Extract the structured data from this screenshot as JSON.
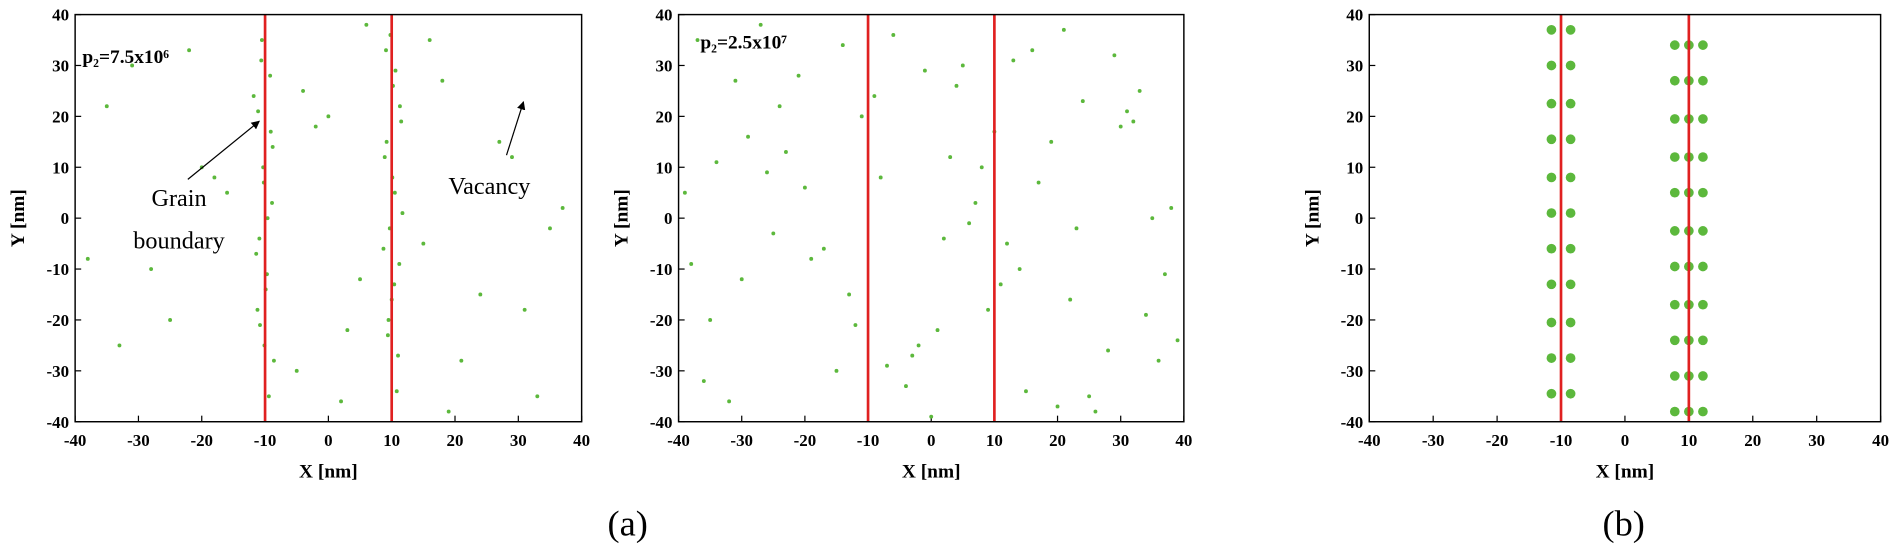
{
  "chart_data": [
    {
      "type": "scatter",
      "xlabel": "X [nm]",
      "ylabel": "Y [nm]",
      "xlim": [
        -40,
        40
      ],
      "ylim": [
        -40,
        40
      ],
      "xticks": [
        -40,
        -30,
        -20,
        -10,
        0,
        10,
        20,
        30,
        40
      ],
      "yticks": [
        -40,
        -30,
        -20,
        -10,
        0,
        10,
        20,
        30,
        40
      ],
      "color": "#5cb83c",
      "vlines": [
        -10,
        10
      ],
      "vline_color": "#e02020",
      "annotations": [
        "p₂=7.5x10⁶",
        "Grain",
        "boundary",
        "Vacancy"
      ],
      "x": [
        -10.5,
        -9.2,
        -11.1,
        -8.8,
        -10.2,
        -9.6,
        -11.4,
        -9.9,
        -10.8,
        -8.6,
        -9.4,
        -10.6,
        -11.8,
        -9.1,
        -10.3,
        -8.9,
        -10.9,
        -9.7,
        -11.2,
        -10.1,
        9.8,
        10.6,
        11.3,
        9.2,
        10.1,
        11.7,
        8.7,
        10.4,
        9.5,
        11.0,
        10.8,
        9.1,
        10.2,
        11.5,
        8.9,
        10.5,
        9.7,
        11.2,
        10.0,
        9.4,
        -35,
        -28,
        -22,
        -16,
        -5,
        -2,
        3,
        6,
        15,
        18,
        24,
        29,
        33,
        37,
        -38,
        -31,
        -25,
        -18,
        -4,
        2,
        5,
        16,
        21,
        27,
        35,
        -33,
        -20,
        0,
        19,
        31
      ],
      "y": [
        35,
        28,
        21,
        14,
        7,
        0,
        -7,
        -14,
        -21,
        -28,
        -35,
        31,
        24,
        17,
        10,
        3,
        -4,
        -11,
        -18,
        -25,
        36,
        29,
        22,
        15,
        8,
        1,
        -6,
        -13,
        -20,
        -27,
        -34,
        33,
        26,
        19,
        12,
        5,
        -2,
        -9,
        -16,
        -23,
        22,
        -10,
        33,
        5,
        -30,
        18,
        -22,
        38,
        -5,
        27,
        -15,
        12,
        -35,
        2,
        -8,
        30,
        -20,
        8,
        25,
        -36,
        -12,
        35,
        -28,
        15,
        -2,
        -25,
        10,
        20,
        -38,
        -18
      ]
    },
    {
      "type": "scatter",
      "xlabel": "X [nm]",
      "ylabel": "Y [nm]",
      "xlim": [
        -40,
        40
      ],
      "ylim": [
        -40,
        40
      ],
      "xticks": [
        -40,
        -30,
        -20,
        -10,
        0,
        10,
        20,
        30,
        40
      ],
      "yticks": [
        -40,
        -30,
        -20,
        -10,
        0,
        10,
        20,
        30,
        40
      ],
      "color": "#5cb83c",
      "vlines": [
        -10,
        10
      ],
      "vline_color": "#e02020",
      "annotations": [
        "p₂=2.5x10⁷"
      ],
      "x": [
        -37,
        -30,
        -24,
        -15,
        -8,
        -2,
        5,
        12,
        19,
        26,
        33,
        38,
        -35,
        -27,
        -19,
        -11,
        -4,
        3,
        9,
        16,
        23,
        30,
        36,
        -39,
        -32,
        -21,
        -13,
        -6,
        1,
        8,
        14,
        21,
        28,
        35,
        -36,
        -29,
        -17,
        -9,
        0,
        7,
        13,
        22,
        31,
        39,
        -34,
        -25,
        -14,
        -7,
        4,
        11,
        17,
        25,
        32,
        -38,
        -23,
        -12,
        -1,
        6,
        15,
        24,
        34,
        -31,
        -20,
        -3,
        10,
        20,
        29,
        37,
        -26,
        2
      ],
      "y": [
        35,
        -12,
        22,
        -30,
        8,
        -25,
        30,
        -5,
        15,
        -38,
        25,
        2,
        -20,
        38,
        -8,
        20,
        -33,
        12,
        -18,
        33,
        -2,
        18,
        -28,
        5,
        -36,
        28,
        -15,
        36,
        -22,
        10,
        -10,
        37,
        -26,
        0,
        -32,
        16,
        -6,
        24,
        -39,
        3,
        31,
        -16,
        21,
        -24,
        11,
        -3,
        34,
        -29,
        26,
        -13,
        7,
        -35,
        19,
        -9,
        13,
        -21,
        29,
        -1,
        -34,
        23,
        -19,
        27,
        6,
        -27,
        17,
        -37,
        32,
        -11,
        9,
        -4
      ]
    },
    {
      "type": "scatter",
      "xlabel": "X [nm]",
      "ylabel": "Y [nm]",
      "xlim": [
        -40,
        40
      ],
      "ylim": [
        -40,
        40
      ],
      "xticks": [
        -40,
        -30,
        -20,
        -10,
        0,
        10,
        20,
        30,
        40
      ],
      "yticks": [
        -40,
        -30,
        -20,
        -10,
        0,
        10,
        20,
        30,
        40
      ],
      "color": "#5cb83c",
      "vlines": [
        -10,
        10
      ],
      "vline_color": "#e02020",
      "x": [
        -11.5,
        -8.5,
        -11.5,
        -8.5,
        -11.5,
        -8.5,
        -11.5,
        -8.5,
        -11.5,
        -8.5,
        -11.5,
        -8.5,
        -11.5,
        -8.5,
        -11.5,
        -8.5,
        -11.5,
        -8.5,
        -11.5,
        -8.5,
        -11.5,
        -8.5,
        7.8,
        10,
        12.2,
        7.8,
        10,
        12.2,
        7.8,
        10,
        12.2,
        7.8,
        10,
        12.2,
        7.8,
        10,
        12.2,
        7.8,
        10,
        12.2,
        7.8,
        10,
        12.2,
        7.8,
        10,
        12.2,
        7.8,
        10,
        12.2,
        7.8,
        10,
        12.2,
        7.8,
        10,
        12.2
      ],
      "y": [
        37,
        37,
        30,
        30,
        22.5,
        22.5,
        15.5,
        15.5,
        8,
        8,
        1,
        1,
        -6,
        -6,
        -13,
        -13,
        -20.5,
        -20.5,
        -27.5,
        -27.5,
        -34.5,
        -34.5,
        34,
        34,
        34,
        27,
        27,
        27,
        19.5,
        19.5,
        19.5,
        12,
        12,
        12,
        5,
        5,
        5,
        -2.5,
        -2.5,
        -2.5,
        -9.5,
        -9.5,
        -9.5,
        -17,
        -17,
        -17,
        -24,
        -24,
        -24,
        -31,
        -31,
        -31,
        -38,
        -38,
        -38
      ]
    }
  ],
  "panel_labels": [
    "(a)",
    "(b)"
  ]
}
